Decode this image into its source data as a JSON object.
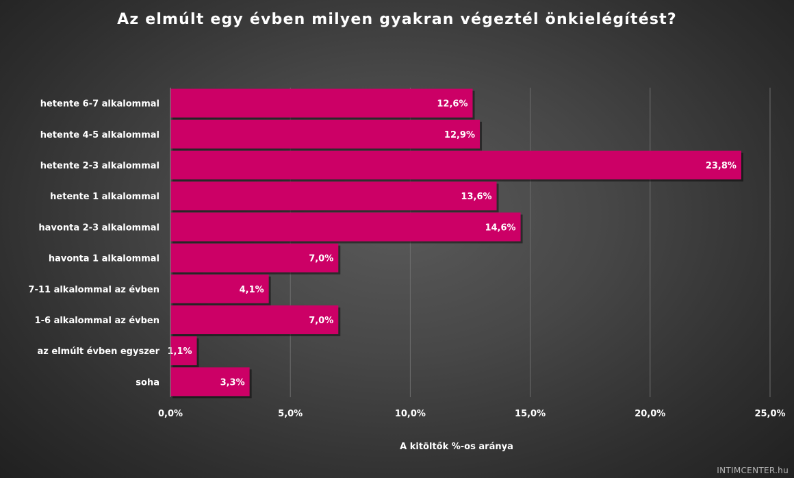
{
  "chart_data": {
    "type": "bar",
    "orientation": "horizontal",
    "title": "Az elmúlt egy évben milyen gyakran végeztél önkielégítést?",
    "xlabel": "A kitöltők %-os aránya",
    "ylabel": "",
    "categories": [
      "hetente 6-7 alkalommal",
      "hetente 4-5 alkalommal",
      "hetente 2-3 alkalommal",
      "hetente 1 alkalommal",
      "havonta 2-3 alkalommal",
      "havonta 1 alkalommal",
      "7-11 alkalommal az évben",
      "1-6 alkalommal az évben",
      "az elmúlt évben egyszer",
      "soha"
    ],
    "values": [
      12.6,
      12.9,
      23.8,
      13.6,
      14.6,
      7.0,
      4.1,
      7.0,
      1.1,
      3.3
    ],
    "data_labels": [
      "12,6%",
      "12,9%",
      "23,8%",
      "13,6%",
      "14,6%",
      "7,0%",
      "4,1%",
      "7,0%",
      "1,1%",
      "3,3%"
    ],
    "xlim": [
      0,
      25
    ],
    "xticks": [
      0,
      5,
      10,
      15,
      20,
      25
    ],
    "xtick_labels": [
      "0,0%",
      "5,0%",
      "10,0%",
      "15,0%",
      "20,0%",
      "25,0%"
    ],
    "grid": "vertical",
    "legend": "none",
    "bar_color": "#cc0066",
    "background_color": "#3a3a3a",
    "text_color": "#ffffff"
  },
  "watermark": "INTIMCENTER.hu"
}
